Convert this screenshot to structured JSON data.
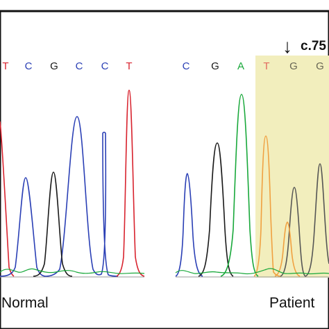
{
  "colors": {
    "A": "#18a83a",
    "C": "#2a3fb5",
    "G": "#1a1a1a",
    "T": "#d8232e",
    "highlight": "#f2eebd",
    "frame": "#111111"
  },
  "panels": [
    {
      "label": "Normal",
      "bases": [
        "T",
        "C",
        "G",
        "C",
        "C",
        "T"
      ]
    },
    {
      "label": "Patient",
      "bases": [
        "C",
        "G",
        "A",
        "T",
        "G",
        "G"
      ],
      "highlight_from_base_index": 3,
      "mutation_annotation": "c.75",
      "arrow_glyph": "↓"
    }
  ]
}
